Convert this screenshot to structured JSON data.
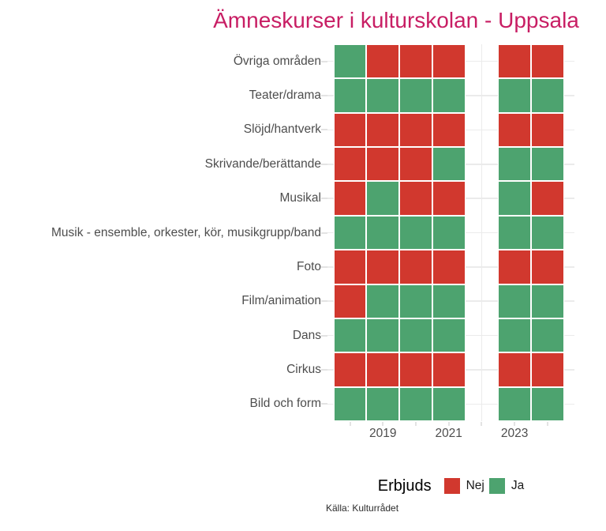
{
  "title": "Ämneskurser i kulturskolan - Uppsala",
  "caption": "Källa: Kulturrådet",
  "legend": {
    "title": "Erbjuds",
    "items": [
      {
        "label": "Nej",
        "value": "Nej",
        "color": "#d1382e"
      },
      {
        "label": "Ja",
        "value": "Ja",
        "color": "#4da36f"
      }
    ]
  },
  "colors": {
    "no": "#d1382e",
    "yes": "#4da36f",
    "title": "#c81e64",
    "axis_text": "#4d4d4d",
    "gridline": "#ebebeb",
    "tick": "#e3e3e3",
    "background": "#ffffff"
  },
  "chart_data": {
    "type": "heatmap",
    "title": "Ämneskurser i kulturskolan - Uppsala",
    "caption": "Källa: Kulturrådet",
    "legend_title": "Erbjuds",
    "legend_position": "bottom",
    "value_domain": [
      "Nej",
      "Ja"
    ],
    "x_years_with_data": [
      2018,
      2019,
      2020,
      2021,
      2023,
      2024
    ],
    "x_year_missing": 2022,
    "x_axis_tick_labels": [
      "2019",
      "2021",
      "2023"
    ],
    "x_tick_label_years": [
      2019,
      2021,
      2023
    ],
    "y_categories_top_to_bottom": [
      "Övriga områden",
      "Teater/drama",
      "Slöjd/hantverk",
      "Skrivande/berättande",
      "Musikal",
      "Musik - ensemble, orkester, kör, musikgrupp/band",
      "Foto",
      "Film/animation",
      "Dans",
      "Cirkus",
      "Bild och form"
    ],
    "rows": [
      {
        "category": "Övriga områden",
        "values": [
          "Ja",
          "Nej",
          "Nej",
          "Nej",
          "Nej",
          "Nej"
        ]
      },
      {
        "category": "Teater/drama",
        "values": [
          "Ja",
          "Ja",
          "Ja",
          "Ja",
          "Ja",
          "Ja"
        ]
      },
      {
        "category": "Slöjd/hantverk",
        "values": [
          "Nej",
          "Nej",
          "Nej",
          "Nej",
          "Nej",
          "Nej"
        ]
      },
      {
        "category": "Skrivande/berättande",
        "values": [
          "Nej",
          "Nej",
          "Nej",
          "Ja",
          "Ja",
          "Ja"
        ]
      },
      {
        "category": "Musikal",
        "values": [
          "Nej",
          "Ja",
          "Nej",
          "Nej",
          "Ja",
          "Nej"
        ]
      },
      {
        "category": "Musik - ensemble, orkester, kör, musikgrupp/band",
        "values": [
          "Ja",
          "Ja",
          "Ja",
          "Ja",
          "Ja",
          "Ja"
        ]
      },
      {
        "category": "Foto",
        "values": [
          "Nej",
          "Nej",
          "Nej",
          "Nej",
          "Nej",
          "Nej"
        ]
      },
      {
        "category": "Film/animation",
        "values": [
          "Nej",
          "Ja",
          "Ja",
          "Ja",
          "Ja",
          "Ja"
        ]
      },
      {
        "category": "Dans",
        "values": [
          "Ja",
          "Ja",
          "Ja",
          "Ja",
          "Ja",
          "Ja"
        ]
      },
      {
        "category": "Cirkus",
        "values": [
          "Nej",
          "Nej",
          "Nej",
          "Nej",
          "Nej",
          "Nej"
        ]
      },
      {
        "category": "Bild och form",
        "values": [
          "Ja",
          "Ja",
          "Ja",
          "Ja",
          "Ja",
          "Ja"
        ]
      }
    ]
  }
}
